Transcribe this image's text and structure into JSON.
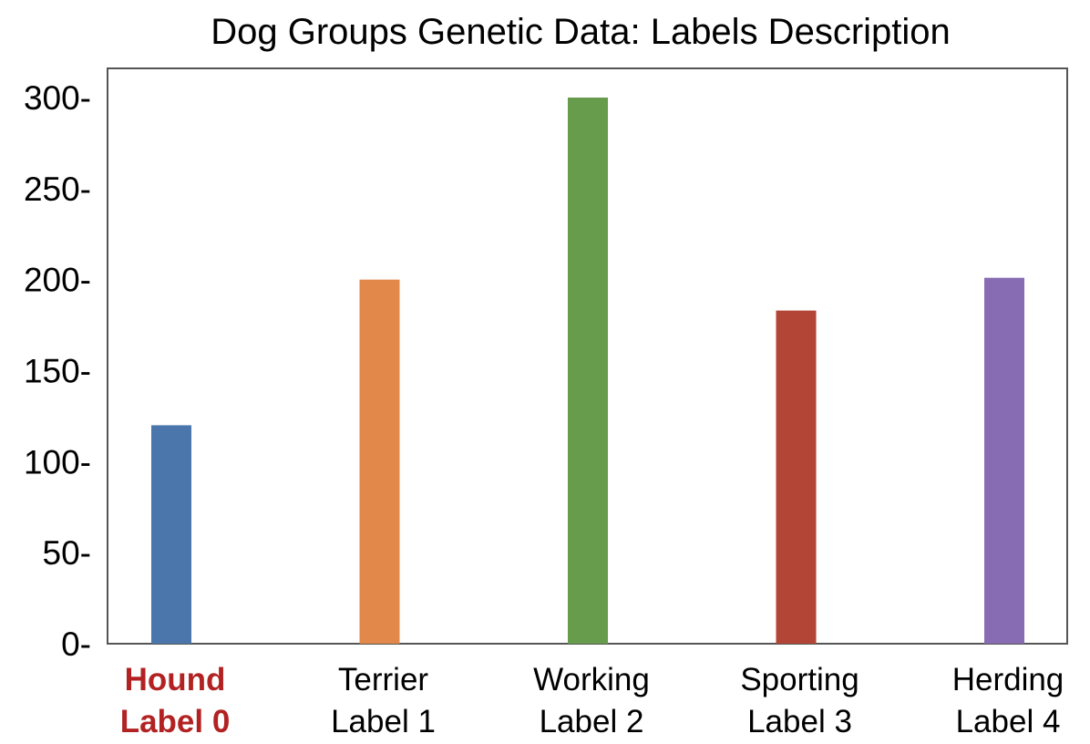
{
  "chart_data": {
    "type": "bar",
    "title": "Dog Groups Genetic Data: Labels Description",
    "xlabel": "",
    "ylabel": "",
    "ylim": [
      0,
      300
    ],
    "yticks": [
      0,
      50,
      100,
      150,
      200,
      250,
      300
    ],
    "ytick_labels": [
      "0-",
      "50-",
      "100-",
      "150-",
      "200-",
      "250-",
      "300-"
    ],
    "grid": false,
    "legend": "none",
    "categories": [
      {
        "name": "Hound",
        "label": "Label 0",
        "highlight": true
      },
      {
        "name": "Terrier",
        "label": "Label 1",
        "highlight": false
      },
      {
        "name": "Working",
        "label": "Label 2",
        "highlight": false
      },
      {
        "name": "Sporting",
        "label": "Label 3",
        "highlight": false
      },
      {
        "name": "Herding",
        "label": "Label 4",
        "highlight": false
      }
    ],
    "values": [
      120,
      200,
      300,
      183,
      201
    ],
    "colors": [
      "#4a76ab",
      "#e2884a",
      "#669c4b",
      "#b34537",
      "#876cb3"
    ],
    "highlight_color": "#b22222"
  }
}
